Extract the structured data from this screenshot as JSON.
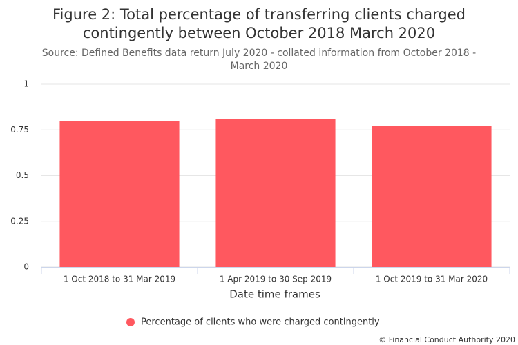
{
  "chart_data": {
    "type": "bar",
    "title": "Figure 2: Total percentage of transferring clients charged contingently between October 2018 March 2020",
    "subtitle": "Source: Defined Benefits data return July 2020 - collated information from October 2018 - March 2020",
    "x_label": "Date time frames",
    "categories": [
      "1 Oct 2018 to 31 Mar 2019",
      "1 Apr 2019 to 30 Sep 2019",
      "1 Oct 2019 to 31 Mar 2020"
    ],
    "series": [
      {
        "name": "Percentage of clients who were charged contingently",
        "color": "#ff585f",
        "values": [
          0.8,
          0.81,
          0.77
        ]
      }
    ],
    "ylim": [
      0,
      1
    ],
    "yticks": [
      0,
      0.25,
      0.5,
      0.75,
      1
    ],
    "grid": true,
    "legend": "bottom",
    "credits": "© Financial Conduct Authority 2020"
  }
}
